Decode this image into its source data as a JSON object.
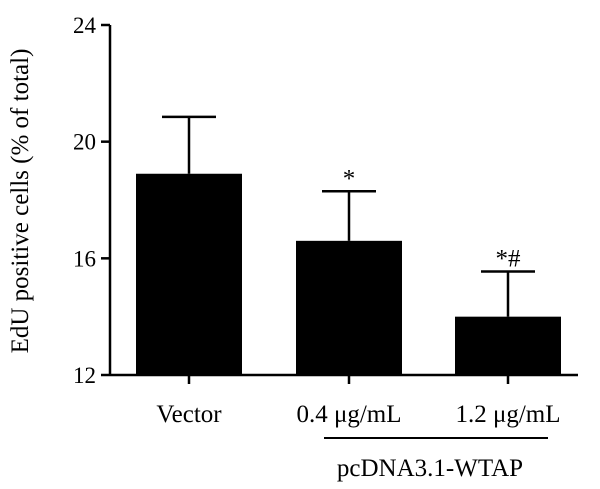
{
  "chart_data": {
    "type": "bar",
    "ylabel": "EdU positive cells (% of total)",
    "ylim": [
      12,
      24
    ],
    "yticks": [
      "12",
      "16",
      "20",
      "24"
    ],
    "categories": [
      "Vector",
      "0.4 μg/mL",
      "1.2 μg/mL"
    ],
    "values": [
      18.9,
      16.6,
      14.0
    ],
    "errors": [
      1.95,
      1.7,
      1.55
    ],
    "significance": [
      "",
      "*",
      "*#"
    ],
    "group": {
      "label": "pcDNA3.1-WTAP",
      "spans": [
        "0.4 μg/mL",
        "1.2 μg/mL"
      ]
    },
    "bar_color": "#000000",
    "grid": false,
    "legend": "none"
  }
}
